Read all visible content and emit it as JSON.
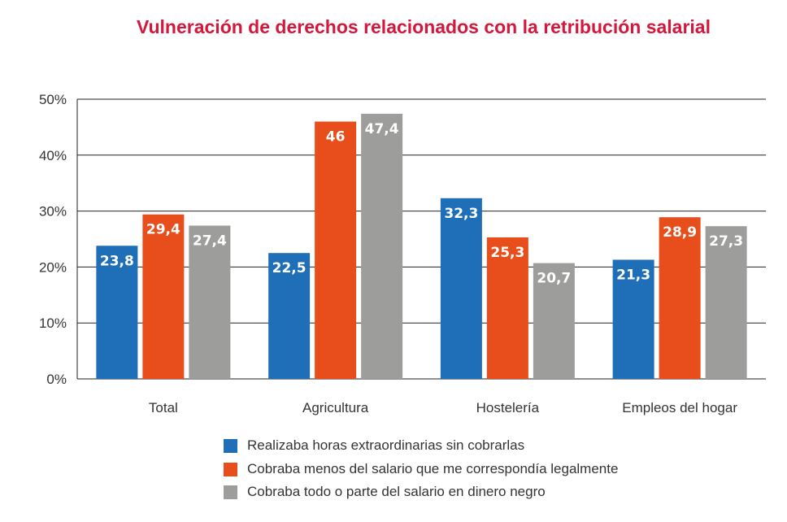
{
  "chart_data": {
    "type": "bar",
    "title": "Vulneración de derechos relacionados con la retribución salarial",
    "categories": [
      "Total",
      "Agricultura",
      "Hostelería",
      "Empleos del hogar"
    ],
    "series": [
      {
        "name": "Realizaba horas extraordinarias sin cobrarlas",
        "color": "#1f6fb8",
        "values": [
          23.8,
          22.5,
          32.3,
          21.3
        ],
        "labels": [
          "23,8",
          "22,5",
          "32,3",
          "21,3"
        ]
      },
      {
        "name": "Cobraba menos del salario que me correspondía legalmente",
        "color": "#e84e1b",
        "values": [
          29.4,
          46,
          25.3,
          28.9
        ],
        "labels": [
          "29,4",
          "46",
          "25,3",
          "28,9"
        ]
      },
      {
        "name": "Cobraba todo o parte del salario en dinero negro",
        "color": "#9d9d9c",
        "values": [
          27.4,
          47.4,
          20.7,
          27.3
        ],
        "labels": [
          "27,4",
          "47,4",
          "20,7",
          "27,3"
        ]
      }
    ],
    "ylim": [
      0,
      50
    ],
    "yticks": [
      "0%",
      "10%",
      "20%",
      "30%",
      "40%",
      "50%"
    ],
    "grid": true,
    "legend": "bottom"
  }
}
